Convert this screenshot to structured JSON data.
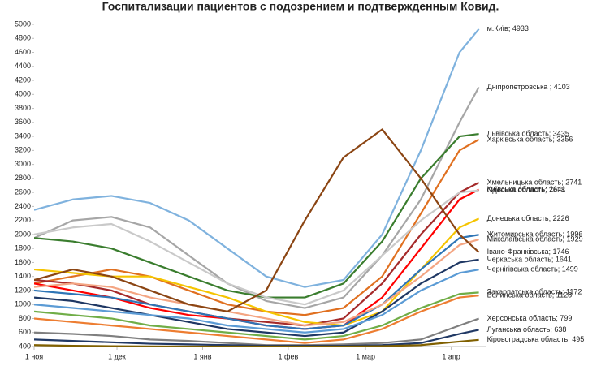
{
  "chart_data": {
    "type": "line",
    "title": "Госпитализации пациентов с подозрением и подтвержденным Ковид.",
    "x": [
      0,
      14,
      28,
      42,
      56,
      70,
      84,
      98,
      112,
      126,
      140,
      154,
      161
    ],
    "xlim": [
      0,
      162
    ],
    "xticks": [
      {
        "value": 0,
        "label": "1 ноя"
      },
      {
        "value": 30,
        "label": "1 дек"
      },
      {
        "value": 61,
        "label": "1 янв"
      },
      {
        "value": 92,
        "label": "1 фев"
      },
      {
        "value": 120,
        "label": "1 мар"
      },
      {
        "value": 151,
        "label": "1 апр"
      }
    ],
    "ylim": [
      400,
      5000
    ],
    "yticks": [
      400,
      600,
      800,
      1000,
      1200,
      1400,
      1600,
      1800,
      2000,
      2200,
      2400,
      2600,
      2800,
      3000,
      3200,
      3400,
      3600,
      3800,
      4000,
      4200,
      4400,
      4600,
      4800,
      5000
    ],
    "grid": false,
    "series": [
      {
        "name": "м.Київ; 4933",
        "color": "#7fb2de",
        "values": [
          2350,
          2500,
          2550,
          2450,
          2200,
          1800,
          1400,
          1250,
          1350,
          2000,
          3200,
          4600,
          4933
        ]
      },
      {
        "name": "Дніпропетровська ; 4103",
        "color": "#a6a6a6",
        "values": [
          1950,
          2200,
          2250,
          2100,
          1700,
          1300,
          1050,
          950,
          1100,
          1700,
          2500,
          3600,
          4103
        ]
      },
      {
        "name": "Львівська область; 3435",
        "color": "#3a7d2e",
        "values": [
          1950,
          1900,
          1800,
          1600,
          1400,
          1200,
          1100,
          1100,
          1300,
          1900,
          2800,
          3400,
          3435
        ]
      },
      {
        "name": "Харківська область; 3356",
        "color": "#e07020",
        "values": [
          1300,
          1400,
          1500,
          1400,
          1200,
          1000,
          900,
          850,
          950,
          1400,
          2300,
          3200,
          3356
        ]
      },
      {
        "name": "Хмельницька область; 2741",
        "color": "#a52a2a",
        "values": [
          1350,
          1300,
          1200,
          1000,
          900,
          800,
          750,
          700,
          800,
          1300,
          2000,
          2600,
          2741
        ]
      },
      {
        "name": "Київська область; 2641",
        "color": "#ff0000",
        "values": [
          1300,
          1200,
          1100,
          950,
          850,
          800,
          700,
          650,
          700,
          1100,
          1800,
          2500,
          2641
        ]
      },
      {
        "name": "Одеська область; 2628",
        "color": "#c9c9c9",
        "values": [
          2000,
          2100,
          2150,
          1900,
          1600,
          1300,
          1100,
          1000,
          1200,
          1700,
          2200,
          2600,
          2628
        ]
      },
      {
        "name": "Донецька область; 2226",
        "color": "#f5c400",
        "values": [
          1500,
          1450,
          1400,
          1400,
          1250,
          1100,
          900,
          750,
          700,
          900,
          1500,
          2100,
          2226
        ]
      },
      {
        "name": "Житомирська область; 1996",
        "color": "#2e75b6",
        "values": [
          1200,
          1150,
          1100,
          1000,
          900,
          800,
          700,
          650,
          700,
          1000,
          1500,
          1950,
          1996
        ]
      },
      {
        "name": "Миколаївська область; 1929",
        "color": "#f4a582",
        "values": [
          1250,
          1300,
          1250,
          1100,
          1000,
          900,
          800,
          700,
          750,
          1000,
          1400,
          1850,
          1929
        ]
      },
      {
        "name": "Івано-Франківська; 1746",
        "color": "#8b4513",
        "values": [
          1350,
          1500,
          1400,
          1200,
          1000,
          900,
          1200,
          2200,
          3100,
          3500,
          2800,
          2000,
          1746
        ]
      },
      {
        "name": "Черкаська область; 1641",
        "color": "#1f3864",
        "values": [
          1100,
          1050,
          950,
          850,
          750,
          650,
          600,
          550,
          600,
          900,
          1300,
          1600,
          1641
        ]
      },
      {
        "name": "Чернігівська область; 1499",
        "color": "#5b9bd5",
        "values": [
          1000,
          950,
          900,
          850,
          800,
          700,
          650,
          600,
          650,
          850,
          1200,
          1450,
          1499
        ]
      },
      {
        "name": "Закарпатська область; 1172",
        "color": "#70ad47",
        "values": [
          900,
          850,
          800,
          700,
          650,
          600,
          550,
          500,
          550,
          700,
          950,
          1150,
          1172
        ]
      },
      {
        "name": "Волинська область; 1128",
        "color": "#ed7d31",
        "values": [
          800,
          750,
          700,
          650,
          600,
          550,
          500,
          450,
          500,
          650,
          900,
          1100,
          1128
        ]
      },
      {
        "name": "Херсонська область; 799",
        "color": "#7f7f7f",
        "values": [
          600,
          580,
          550,
          500,
          480,
          450,
          420,
          420,
          430,
          450,
          500,
          700,
          799
        ]
      },
      {
        "name": "Луганська область; 638",
        "color": "#203864",
        "values": [
          500,
          480,
          460,
          440,
          430,
          420,
          410,
          410,
          410,
          420,
          450,
          580,
          638
        ]
      },
      {
        "name": "Кіровоградська область; 495",
        "color": "#806000",
        "values": [
          420,
          410,
          405,
          402,
          401,
          401,
          401,
          401,
          401,
          405,
          420,
          470,
          495
        ]
      }
    ]
  }
}
